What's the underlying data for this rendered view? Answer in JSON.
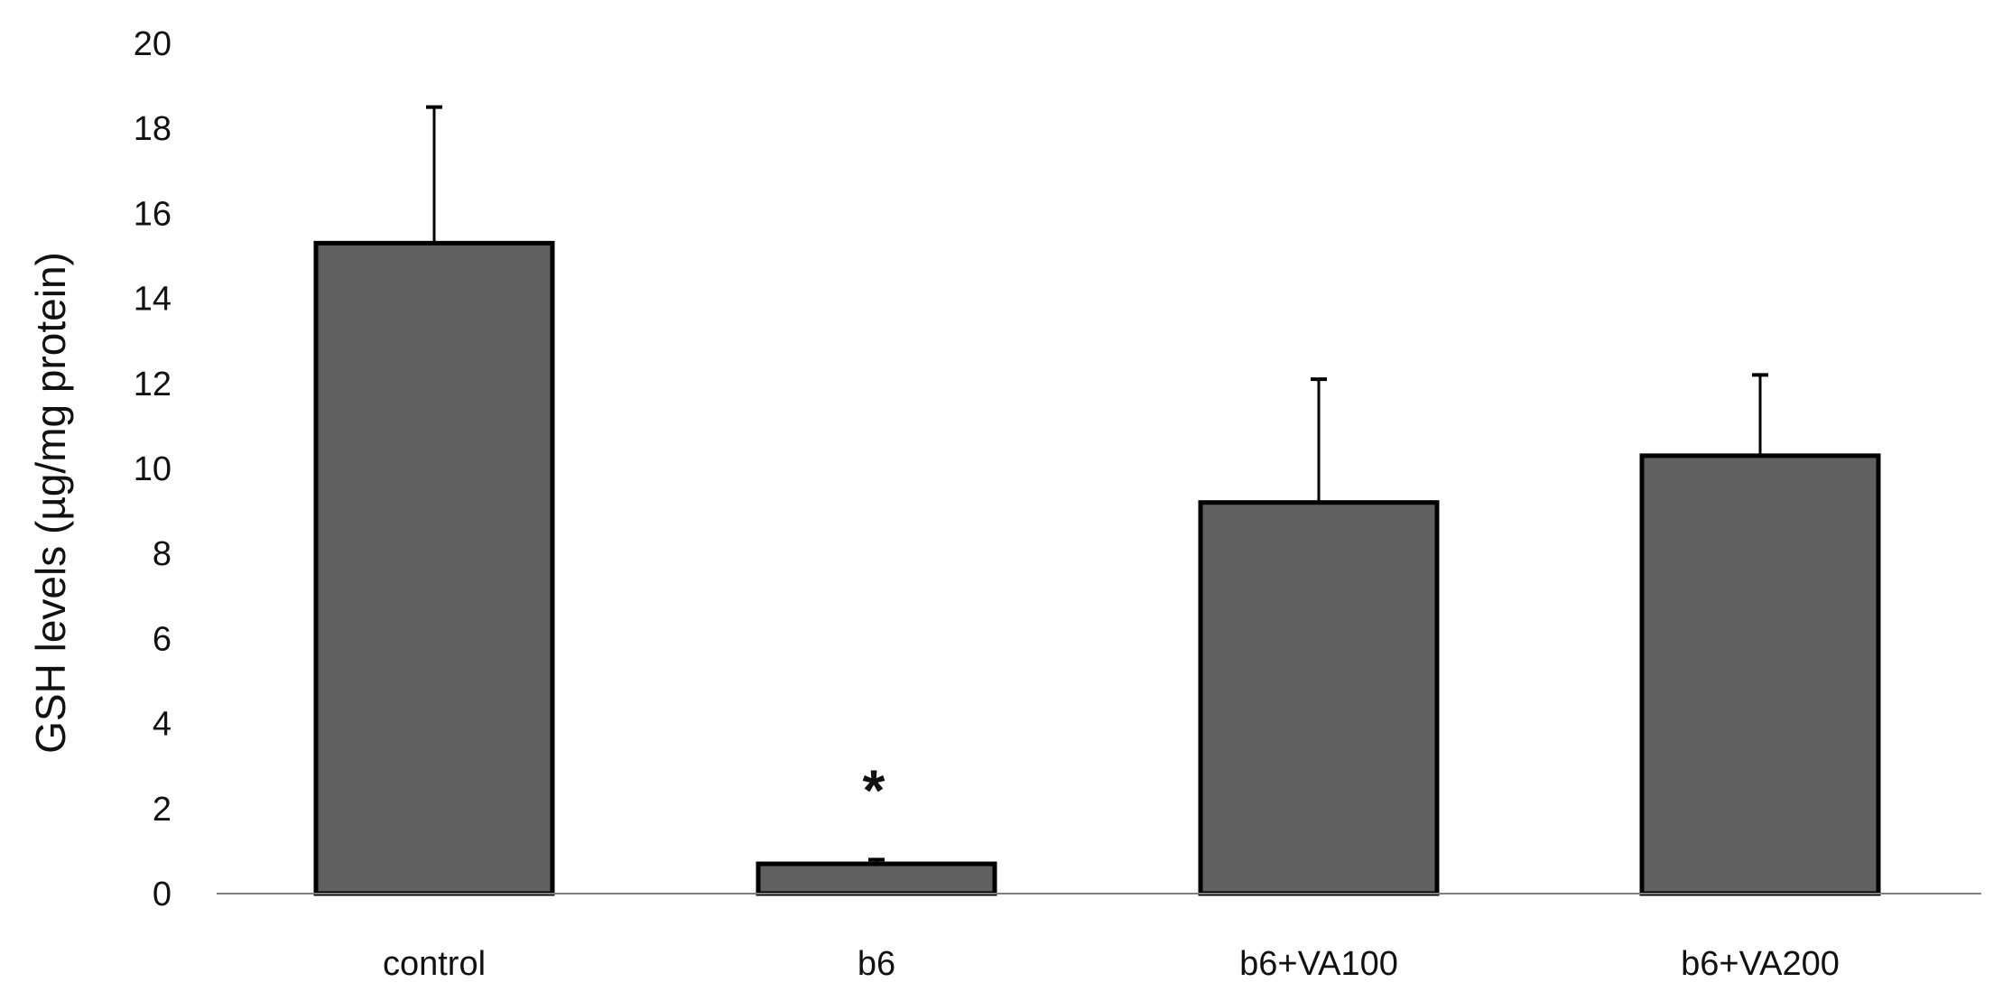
{
  "chart_data": {
    "type": "bar",
    "title": "",
    "xlabel": "",
    "ylabel": "GSH levels (µg/mg protein)",
    "ylim": [
      0,
      20
    ],
    "yticks": [
      "0",
      "2",
      "4",
      "6",
      "8",
      "10",
      "12",
      "14",
      "16",
      "18",
      "20"
    ],
    "grid": false,
    "legend": "none",
    "categories": [
      "control",
      "b6",
      "b6+VA100",
      "b6+VA200"
    ],
    "values": [
      15.3,
      0.7,
      9.2,
      10.3
    ],
    "error_bars": [
      3.2,
      0.1,
      2.9,
      1.9
    ],
    "annotations": [
      {
        "category": "b6",
        "text": "*"
      }
    ],
    "colors": {
      "bar_fill": "#606060",
      "bar_edge": "#000000",
      "axis": "#808080"
    }
  }
}
